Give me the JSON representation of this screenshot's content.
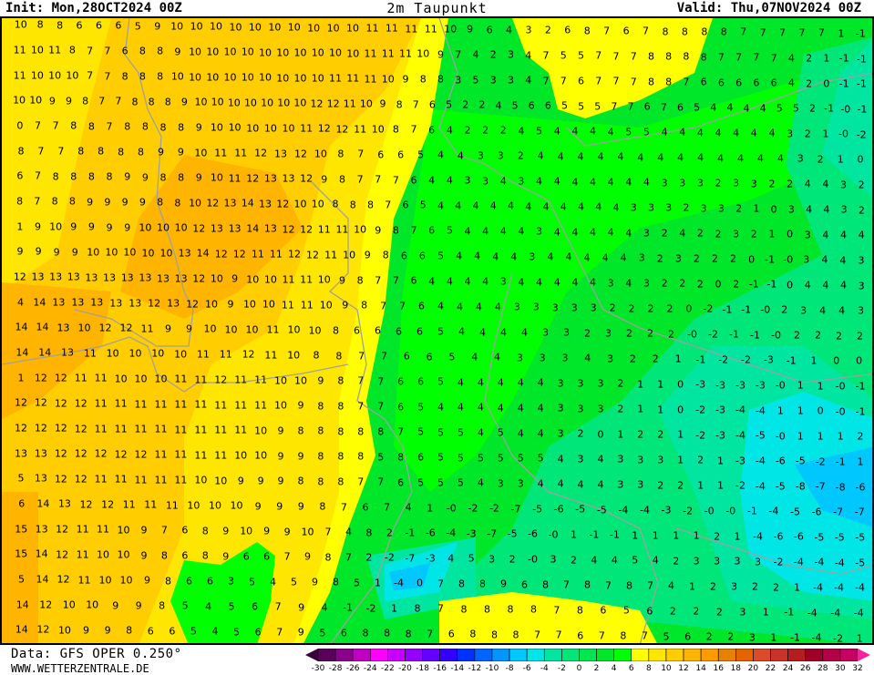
{
  "header": {
    "init": "Init: Mon,28OCT2024 00Z",
    "title": "2m Taupunkt",
    "valid": "Valid: Thu,07NOV2024 00Z"
  },
  "footer": {
    "source": "Data: GFS OPER 0.250°",
    "website": "WWW.WETTERZENTRALE.DE"
  },
  "colorbar": {
    "ticks": [
      "-30",
      "-28",
      "-26",
      "-24",
      "-22",
      "-20",
      "-18",
      "-16",
      "-14",
      "-12",
      "-10",
      "-8",
      "-6",
      "-4",
      "-2",
      "0",
      "2",
      "4",
      "6",
      "8",
      "10",
      "12",
      "14",
      "16",
      "18",
      "20",
      "22",
      "24",
      "26",
      "28",
      "30",
      "32"
    ],
    "colors": [
      "#5a005a",
      "#8c008c",
      "#c000c0",
      "#ff00ff",
      "#c800ff",
      "#9600ff",
      "#6400ff",
      "#3200ff",
      "#0032ff",
      "#0064ff",
      "#0096ff",
      "#00c8ff",
      "#00e6e6",
      "#00e6a0",
      "#00e678",
      "#00e650",
      "#00e628",
      "#00ff00",
      "#ffff00",
      "#ffe600",
      "#ffcd00",
      "#ffb400",
      "#ff9b00",
      "#e68200",
      "#e66400",
      "#dc4b28",
      "#c83228",
      "#b41e1e",
      "#a00028",
      "#b40046",
      "#c80064"
    ],
    "low_arrow_color": "#3c003c",
    "high_arrow_color": "#ff1ea0"
  },
  "map": {
    "field": "2m dew point",
    "unit_hint": "°C",
    "rows": [
      "10 8 8 6 6 6 5 9 10 10 10 10 10 10 10 10 10 10 11 11 11 11 10 9 6 4 3 2 6 8 7 6 7 8 8 8 8 7 7 7 7 7 1 -1",
      "11 10 11 8 7 7 6 8 8 9 10 10 10 10 10 10 10 10 10 10 11 11 11 10 9 7 4 2 3 4 7 5 5 7 7 7 8 8 8 8 7 7 7 7 4 2 1 -1 -1",
      "11 10 10 10 7 7 8 8 8 10 10 10 10 10 10 10 10 10 11 11 11 10 9 8 8 3 5 3 3 4 7 7 6 7 7 7 8 8 7 6 6 6 6 6 4 2 0 -1 -1",
      "10 10 9 9 8 7 7 8 8 8 9 10 10 10 10 10 10 10 12 12 11 10 9 8 7 6 5 2 2 4 5 6 6 5 5 5 7 7 6 7 6 5 4 4 4 4 5 5 2 -1 -0 -1",
      "0 7 7 8 8 7 8 8 8 8 9 10 10 10 10 10 11 12 12 11 10 8 7 6 4 2 2 2 4 5 4 4 4 4 5 5 4 4 4 4 4 4 4 3 2 1 -0 -2",
      "8 7 7 8 8 8 8 9 9 10 11 11 12 13 12 10 8 7 6 6 5 4 4 3 3 2 4 4 4 4 4 4 4 4 4 4 4 4 4 3 2 1 0",
      "6 7 8 8 8 8 9 9 8 8 9 10 11 12 13 13 12 9 8 7 7 7 6 4 4 3 3 4 3 4 4 4 4 4 4 4 3 3 3 2 3 3 2 2 4 4 3 2",
      "8 7 8 8 9 9 9 9 8 8 10 12 13 14 13 12 10 10 8 8 8 7 6 5 4 4 4 4 4 4 4 4 4 4 4 3 3 3 2 3 3 2 1 0 3 4 4 3 2",
      "1 9 10 9 9 9 9 10 10 10 12 13 13 14 13 12 12 11 11 10 9 8 7 6 5 4 4 4 4 3 4 4 4 4 4 3 2 4 2 2 3 2 1 0 3 4 4 4",
      "9 9 9 9 10 10 10 10 10 13 14 12 12 11 11 12 12 11 10 9 8 6 6 5 4 4 4 4 3 4 4 4 4 4 3 2 3 2 2 2 0 -1 -0 3 4 4 3",
      "12 13 13 13 13 13 13 13 13 13 12 10 9 10 10 11 11 10 9 8 7 7 6 4 4 4 4 3 4 4 4 4 4 3 4 3 2 2 2 0 2 -1 -1 0 4 4 4 3",
      "4 14 13 13 13 13 13 12 13 12 10 9 10 10 11 11 10 9 8 7 7 6 4 4 4 4 3 3 3 3 3 2 2 2 2 0 -2 -1 -1 -0 2 3 4 4 3",
      "14 14 13 10 12 12 11 9 9 10 10 10 11 10 10 8 6 6 6 6 5 4 4 4 4 3 3 2 3 2 2 2 -0 -2 -1 -1 -0 2 2 2 2",
      "14 14 13 11 10 10 10 10 11 11 12 11 10 8 8 7 7 6 6 5 4 4 3 3 3 4 3 2 2 1 -1 -2 -2 -3 -1 1 0 0",
      "1 12 12 11 11 10 10 10 11 11 12 11 11 10 10 9 8 7 7 6 6 5 4 4 4 4 4 3 3 3 2 1 1 0 -3 -3 -3 -3 -0 1 1 -0 -1",
      "12 12 12 12 11 11 11 11 11 11 11 11 11 10 9 8 8 7 7 6 5 4 4 4 4 4 4 3 3 3 2 1 1 0 -2 -3 -4 -4 1 1 0 -0 -1",
      "12 12 12 12 11 11 11 11 11 11 11 11 10 9 8 8 8 8 8 7 5 5 5 4 5 4 4 3 2 0 1 2 2 1 -2 -3 -4 -5 -0 1 1 1 2",
      "13 13 12 12 12 12 12 11 11 11 11 10 10 9 9 8 8 8 5 8 6 5 5 5 5 5 5 4 3 4 3 3 3 1 2 1 -3 -4 -6 -5 -2 -1 1",
      "5 13 12 12 11 11 11 11 11 10 10 9 9 9 8 8 8 7 7 6 5 5 5 4 3 3 4 4 4 4 3 3 2 2 1 1 -2 -4 -5 -8 -7 -8 -6",
      "6 14 13 12 12 11 11 11 10 10 10 9 9 9 8 7 6 7 4 1 -0 -2 -2 -7 -5 -6 -5 -5 -4 -4 -3 -2 -0 -0 -1 -4 -5 -6 -7 -7",
      "15 13 12 11 11 10 9 7 6 8 9 10 9 9 10 7 4 8 2 -1 -6 -4 -3 -7 -5 -6 -0 1 -1 -1 1 1 1 1 2 1 -4 -6 -6 -5 -5 -5",
      "15 14 12 11 10 10 9 8 6 8 9 6 6 7 9 8 7 2 -2 -7 -3 4 5 3 2 -0 3 2 4 4 5 4 2 3 3 3 3 -2 -4 -4 -4 -5",
      "5 14 12 11 10 10 9 8 6 6 3 5 4 5 9 8 5 1 -4 0 7 8 8 9 6 8 7 8 7 8 7 4 1 2 3 2 2 1 -4 -4 -4",
      "14 12 10 10 9 9 8 5 4 5 6 7 9 4 -1 -2 1 8 7 8 8 8 8 7 8 6 5 6 2 2 2 3 1 -1 -4 -4 -4",
      "14 12 10 9 9 8 6 6 5 4 5 6 7 9 5 6 8 8 8 7 6 8 8 8 7 7 6 7 8 7 5 6 2 2 3 1 -1 -4 -2 1"
    ]
  }
}
